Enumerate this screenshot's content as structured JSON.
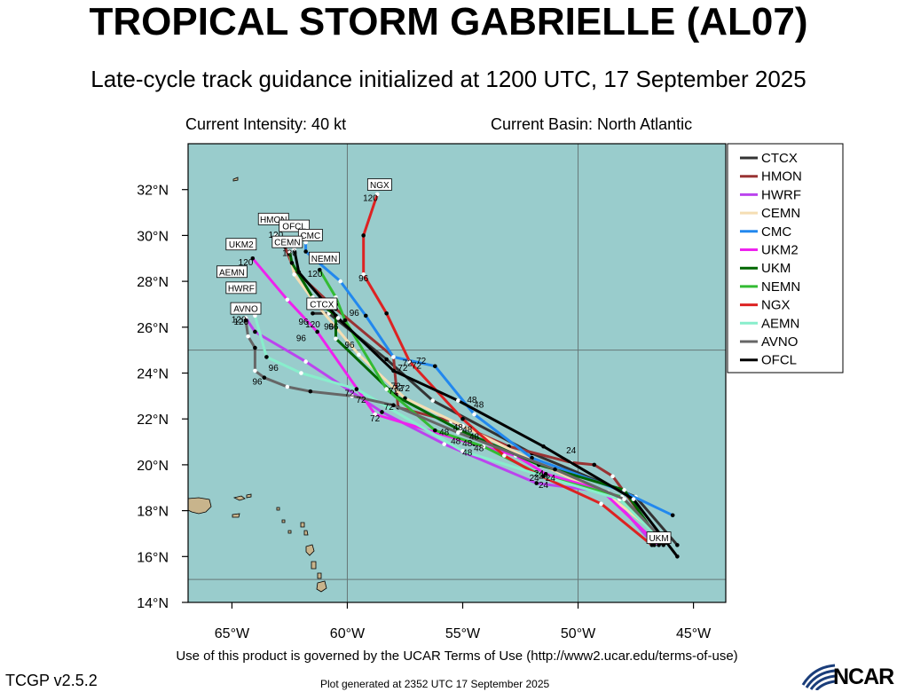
{
  "header": {
    "title": "TROPICAL STORM GABRIELLE (AL07)",
    "subtitle": "Late-cycle track guidance initialized at 1200 UTC, 17 September 2025",
    "intensity": "Current Intensity: 40 kt",
    "basin": "Current Basin: North Atlantic"
  },
  "footer": {
    "terms": "Use of this product is governed by the UCAR Terms of Use (http://www2.ucar.edu/terms-of-use)",
    "version": "TCGP v2.5.2",
    "generated": "Plot generated at 2352 UTC   17 September 2025",
    "logo": "NCAR"
  },
  "colors": {
    "ocean": "#99cccc",
    "land": "#c8b48c",
    "grid": "#667777"
  },
  "axes": {
    "lon_range": [
      -66.9,
      -43.6
    ],
    "lat_range": [
      14,
      34
    ],
    "lon_ticks": [
      -65,
      -60,
      -55,
      -50,
      -45
    ],
    "lon_labels": [
      "65°W",
      "60°W",
      "55°W",
      "50°W",
      "45°W"
    ],
    "lat_ticks": [
      14,
      16,
      18,
      20,
      22,
      24,
      26,
      28,
      30,
      32
    ],
    "lat_labels": [
      "14°N",
      "16°N",
      "18°N",
      "20°N",
      "22°N",
      "24°N",
      "26°N",
      "28°N",
      "30°N",
      "32°N"
    ],
    "grid_lon": [
      -60,
      -50
    ],
    "grid_lat": [
      15,
      25
    ]
  },
  "legend": [
    {
      "name": "CTCX",
      "color": "#333333"
    },
    {
      "name": "HMON",
      "color": "#993333"
    },
    {
      "name": "HWRF",
      "color": "#bb44ee"
    },
    {
      "name": "CEMN",
      "color": "#f5deb3"
    },
    {
      "name": "CMC",
      "color": "#2288ee"
    },
    {
      "name": "UKM2",
      "color": "#ee22ee"
    },
    {
      "name": "UKM",
      "color": "#006600"
    },
    {
      "name": "NEMN",
      "color": "#33bb33"
    },
    {
      "name": "NGX",
      "color": "#dd2222"
    },
    {
      "name": "AEMN",
      "color": "#88eecc"
    },
    {
      "name": "AVNO",
      "color": "#666666"
    },
    {
      "name": "OFCL",
      "color": "#000000"
    }
  ],
  "chart_data": {
    "type": "line",
    "title": "TROPICAL STORM GABRIELLE (AL07)",
    "xlabel": "",
    "ylabel": "",
    "series": [
      {
        "name": "CTCX",
        "color": "#333333",
        "points": [
          [
            -45.7,
            16.5
          ],
          [
            -47.5,
            18.6
          ],
          [
            -52,
            20.5
          ],
          [
            -56.3,
            22.8
          ],
          [
            -58.3,
            24.6
          ],
          [
            -60.8,
            26.6
          ],
          [
            -61.5,
            26.6
          ]
        ],
        "labels": [
          {
            "text": "72",
            "lon": -57.6,
            "lat": 24.1
          },
          {
            "text": "96",
            "lon": -60.8,
            "lat": 26.9
          },
          {
            "text": "120",
            "lon": -61.5,
            "lat": 26.0
          }
        ]
      },
      {
        "name": "HMON",
        "color": "#993333",
        "points": [
          [
            -46.3,
            16.5
          ],
          [
            -48.5,
            19.5
          ],
          [
            -49.3,
            20.0
          ],
          [
            -50.3,
            20.1
          ],
          [
            -53,
            20.8
          ],
          [
            -55.5,
            21.9
          ],
          [
            -57.8,
            22.5
          ],
          [
            -58,
            24.7
          ],
          [
            -60.5,
            26.8
          ],
          [
            -62.3,
            28.5
          ],
          [
            -62.7,
            29.5
          ],
          [
            -63.1,
            30.0
          ]
        ],
        "labels": [
          {
            "text": "48",
            "lon": -54.8,
            "lat": 21.4
          },
          {
            "text": "72",
            "lon": -57.8,
            "lat": 23.2
          },
          {
            "text": "120",
            "lon": -63.1,
            "lat": 29.9
          }
        ]
      },
      {
        "name": "HWRF",
        "color": "#bb44ee",
        "points": [
          [
            -46.7,
            16.5
          ],
          [
            -48.7,
            18.8
          ],
          [
            -51.8,
            19.2
          ],
          [
            -55.8,
            20.9
          ],
          [
            -58.5,
            22.3
          ],
          [
            -61.8,
            24.5
          ],
          [
            -64,
            25.8
          ],
          [
            -64.4,
            26.4
          ]
        ],
        "labels": [
          {
            "text": "48",
            "lon": -55.3,
            "lat": 20.9
          },
          {
            "text": "72",
            "lon": -58.8,
            "lat": 21.9
          },
          {
            "text": "96",
            "lon": -62.0,
            "lat": 25.4
          },
          {
            "text": "120",
            "lon": -64.7,
            "lat": 26.2
          }
        ]
      },
      {
        "name": "CEMN",
        "color": "#f5deb3",
        "points": [
          [
            -46.2,
            16.7
          ],
          [
            -48.6,
            18.6
          ],
          [
            -52,
            20.2
          ],
          [
            -55,
            21.7
          ],
          [
            -57.5,
            22.9
          ],
          [
            -59.5,
            24.8
          ],
          [
            -61.5,
            27.2
          ],
          [
            -62.3,
            28.3
          ],
          [
            -62.5,
            29.2
          ]
        ],
        "labels": [
          {
            "text": "72",
            "lon": -57.5,
            "lat": 23.2
          },
          {
            "text": "96",
            "lon": -59.9,
            "lat": 25.1
          },
          {
            "text": "120",
            "lon": -62.5,
            "lat": 29.5
          }
        ]
      },
      {
        "name": "CMC",
        "color": "#2288ee",
        "points": [
          [
            -45.9,
            17.8
          ],
          [
            -48.2,
            18.9
          ],
          [
            -52,
            20.3
          ],
          [
            -54.5,
            22.2
          ],
          [
            -56.2,
            24.3
          ],
          [
            -58,
            24.7
          ],
          [
            -59.2,
            26.5
          ],
          [
            -60.3,
            28.0
          ],
          [
            -61.8,
            29.3
          ],
          [
            -61.8,
            29.7
          ]
        ],
        "labels": [
          {
            "text": "48",
            "lon": -54.3,
            "lat": 22.5
          },
          {
            "text": "72",
            "lon": -56.8,
            "lat": 24.4
          },
          {
            "text": "96",
            "lon": -59.7,
            "lat": 26.5
          },
          {
            "text": "120",
            "lon": -62.3,
            "lat": 29.5
          }
        ]
      },
      {
        "name": "UKM2",
        "color": "#ee22ee",
        "points": [
          [
            -46.5,
            16.5
          ],
          [
            -49.0,
            18.9
          ],
          [
            -51.4,
            19.6
          ],
          [
            -52.7,
            20.4
          ],
          [
            -54.5,
            20.9
          ],
          [
            -58.8,
            22.2
          ],
          [
            -61.3,
            25.8
          ],
          [
            -62.6,
            27.2
          ],
          [
            -64.1,
            29.0
          ]
        ],
        "labels": [
          {
            "text": "24",
            "lon": -51.7,
            "lat": 19.5
          },
          {
            "text": "48",
            "lon": -54.5,
            "lat": 21.1
          },
          {
            "text": "72",
            "lon": -58.2,
            "lat": 22.4
          },
          {
            "text": "96",
            "lon": -61.9,
            "lat": 26.1
          },
          {
            "text": "120",
            "lon": -64.4,
            "lat": 28.7
          }
        ]
      },
      {
        "name": "UKM",
        "color": "#006600",
        "points": [
          [
            -46.4,
            16.6
          ],
          [
            -48.0,
            18.9
          ],
          [
            -51.7,
            20.0
          ],
          [
            -55.1,
            21.5
          ],
          [
            -57.9,
            23.0
          ],
          [
            -60.5,
            25.5
          ],
          [
            -60.5,
            26.5
          ],
          [
            -61.5,
            27.3
          ],
          [
            -62.4,
            28.8
          ],
          [
            -62.5,
            29.3
          ]
        ],
        "labels": [
          {
            "text": "24",
            "lon": -51.9,
            "lat": 19.3
          },
          {
            "text": "48",
            "lon": -55.2,
            "lat": 21.5
          },
          {
            "text": "72",
            "lon": -58.0,
            "lat": 23.1
          },
          {
            "text": "96",
            "lon": -60.8,
            "lat": 25.9
          },
          {
            "text": "120",
            "lon": -62.5,
            "lat": 29.1
          }
        ]
      },
      {
        "name": "NEMN",
        "color": "#33bb33",
        "points": [
          [
            -46.3,
            16.6
          ],
          [
            -48.1,
            18.6
          ],
          [
            -51.5,
            19.5
          ],
          [
            -54.1,
            20.8
          ],
          [
            -56.2,
            21.5
          ],
          [
            -58.3,
            23.3
          ],
          [
            -60.1,
            26.3
          ],
          [
            -60.5,
            27.3
          ],
          [
            -61.2,
            28.5
          ]
        ],
        "labels": [
          {
            "text": "24",
            "lon": -51.2,
            "lat": 19.3
          },
          {
            "text": "48",
            "lon": -54.8,
            "lat": 20.8
          },
          {
            "text": "72",
            "lon": -57.9,
            "lat": 23.3
          },
          {
            "text": "96",
            "lon": -60.6,
            "lat": 25.9
          },
          {
            "text": "120",
            "lon": -61.4,
            "lat": 28.2
          }
        ]
      },
      {
        "name": "NGX",
        "color": "#dd2222",
        "points": [
          [
            -46.8,
            16.5
          ],
          [
            -49.0,
            18.3
          ],
          [
            -51.8,
            19.6
          ],
          [
            -53.2,
            20.4
          ],
          [
            -55.0,
            22.0
          ],
          [
            -57.3,
            24.5
          ],
          [
            -58.3,
            26.6
          ],
          [
            -59.3,
            28.3
          ],
          [
            -59.3,
            30.0
          ],
          [
            -58.7,
            31.8
          ]
        ],
        "labels": [
          {
            "text": "24",
            "lon": -51.5,
            "lat": 19.0
          },
          {
            "text": "48",
            "lon": -54.3,
            "lat": 20.6
          },
          {
            "text": "72",
            "lon": -57.0,
            "lat": 24.2
          },
          {
            "text": "96",
            "lon": -59.3,
            "lat": 28.0
          },
          {
            "text": "120",
            "lon": -59.0,
            "lat": 31.5
          }
        ]
      },
      {
        "name": "AEMN",
        "color": "#88eecc",
        "points": [
          [
            -46.3,
            16.6
          ],
          [
            -48.2,
            18.5
          ],
          [
            -51.5,
            19.5
          ],
          [
            -55.0,
            20.6
          ],
          [
            -59.6,
            23.3
          ],
          [
            -62.0,
            24.0
          ],
          [
            -63.5,
            24.7
          ],
          [
            -64.0,
            26.5
          ]
        ],
        "labels": [
          {
            "text": "24",
            "lon": -51.5,
            "lat": 19.4
          },
          {
            "text": "48",
            "lon": -54.8,
            "lat": 20.4
          },
          {
            "text": "72",
            "lon": -59.9,
            "lat": 23.0
          },
          {
            "text": "96",
            "lon": -63.2,
            "lat": 24.1
          },
          {
            "text": "120",
            "lon": -64.8,
            "lat": 27.6
          }
        ]
      },
      {
        "name": "AVNO",
        "color": "#666666",
        "points": [
          [
            -46.2,
            16.6
          ],
          [
            -48.0,
            18.5
          ],
          [
            -51.0,
            19.8
          ],
          [
            -55.2,
            21.4
          ],
          [
            -58.0,
            22.6
          ],
          [
            -59.8,
            23.0
          ],
          [
            -61.6,
            23.2
          ],
          [
            -62.6,
            23.4
          ],
          [
            -63.6,
            23.8
          ],
          [
            -64.0,
            24.1
          ],
          [
            -64.0,
            25.1
          ],
          [
            -64.3,
            25.6
          ],
          [
            -64.4,
            26.3
          ]
        ],
        "labels": [
          {
            "text": "48",
            "lon": -55.8,
            "lat": 21.3
          },
          {
            "text": "72",
            "lon": -59.4,
            "lat": 22.7
          },
          {
            "text": "96",
            "lon": -63.9,
            "lat": 23.5
          },
          {
            "text": "120",
            "lon": -64.6,
            "lat": 26.1
          }
        ]
      },
      {
        "name": "OFCL",
        "color": "#000000",
        "points": [
          [
            -45.7,
            16.0
          ],
          [
            -47.6,
            18.5
          ],
          [
            -51.5,
            20.8
          ],
          [
            -55.2,
            22.8
          ],
          [
            -58.0,
            24.1
          ],
          [
            -60.4,
            26.4
          ],
          [
            -62.1,
            28.4
          ],
          [
            -62.3,
            29.4
          ]
        ],
        "labels": [
          {
            "text": "24",
            "lon": -50.3,
            "lat": 20.5
          },
          {
            "text": "48",
            "lon": -54.6,
            "lat": 22.7
          },
          {
            "text": "72",
            "lon": -57.4,
            "lat": 24.3
          },
          {
            "text": "96",
            "lon": -60.6,
            "lat": 26.9
          },
          {
            "text": "120",
            "lon": -62.6,
            "lat": 29.5
          }
        ]
      }
    ],
    "end_labels": [
      {
        "text": "NGX",
        "lon": -58.6,
        "lat": 32.2
      },
      {
        "text": "HMON",
        "lon": -63.2,
        "lat": 30.7
      },
      {
        "text": "OFCL",
        "lon": -62.3,
        "lat": 30.4
      },
      {
        "text": "CMC",
        "lon": -61.6,
        "lat": 30.0
      },
      {
        "text": "CEMN",
        "lon": -62.6,
        "lat": 29.7
      },
      {
        "text": "UKM2",
        "lon": -64.6,
        "lat": 29.6
      },
      {
        "text": "NEMN",
        "lon": -61.0,
        "lat": 29.0
      },
      {
        "text": "AEMN",
        "lon": -65.0,
        "lat": 28.4
      },
      {
        "text": "HWRF",
        "lon": -64.6,
        "lat": 27.7
      },
      {
        "text": "CTCX",
        "lon": -61.1,
        "lat": 27.0
      },
      {
        "text": "AVNO",
        "lon": -64.4,
        "lat": 26.8
      },
      {
        "text": "UKM",
        "lon": -46.5,
        "lat": 16.8
      }
    ]
  }
}
